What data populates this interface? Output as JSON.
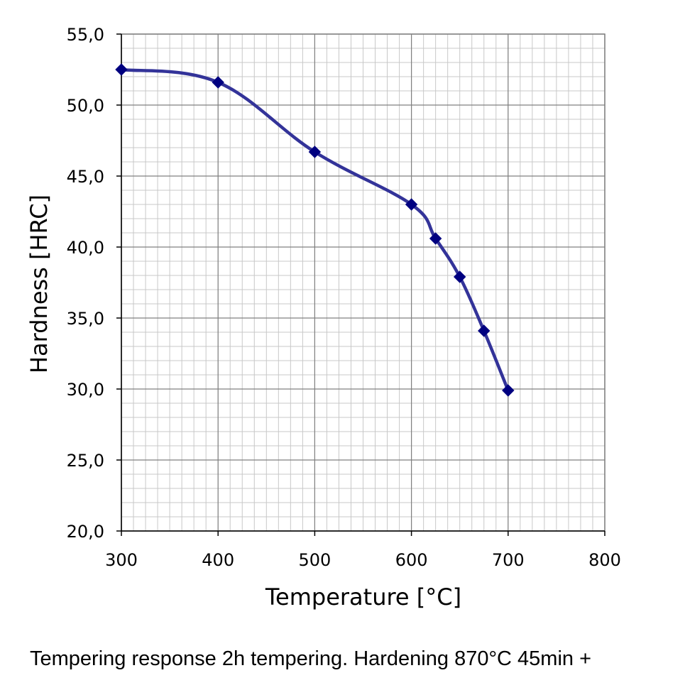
{
  "caption": "Tempering response 2h tempering. Hardening 870°C 45min +",
  "chart_data": {
    "type": "line",
    "title": "",
    "xlabel": "Temperature [°C]",
    "ylabel": "Hardness [HRC]",
    "xlim": [
      300,
      800
    ],
    "ylim": [
      20,
      55
    ],
    "x_ticks": [
      300,
      400,
      500,
      600,
      700,
      800
    ],
    "y_ticks": [
      "20,0",
      "25,0",
      "30,0",
      "35,0",
      "40,0",
      "45,0",
      "50,0",
      "55,0"
    ],
    "grid": true,
    "legend": "none",
    "series_color": "#333399",
    "marker_color": "#000080",
    "marker": "diamond",
    "series": [
      {
        "x": [
          300,
          400,
          500,
          600,
          625,
          650,
          675,
          700
        ],
        "y": [
          52.5,
          51.6,
          46.7,
          43.0,
          40.6,
          37.9,
          34.1,
          29.9
        ]
      }
    ]
  }
}
